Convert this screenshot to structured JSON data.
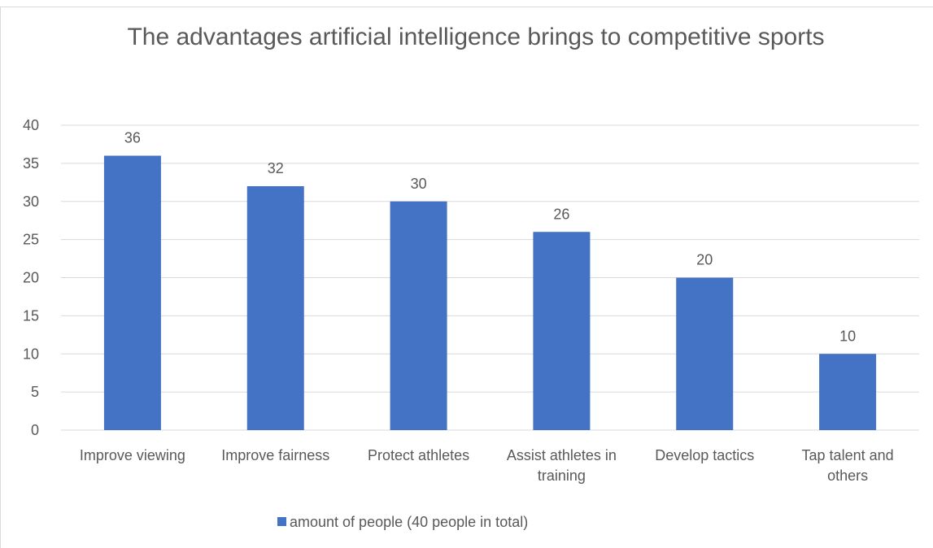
{
  "chart_data": {
    "type": "bar",
    "title": "The advantages artificial intelligence brings to competitive sports",
    "categories": [
      "Improve viewing",
      "Improve fairness",
      "Protect athletes",
      "Assist athletes in training",
      "Develop tactics",
      "Tap talent and others"
    ],
    "series": [
      {
        "name": "amount of people (40 people in total)",
        "color": "#4472c4",
        "values": [
          36,
          32,
          30,
          26,
          20,
          10
        ]
      }
    ],
    "ylim": [
      0,
      40
    ],
    "yticks": [
      0,
      5,
      10,
      15,
      20,
      25,
      30,
      35,
      40
    ],
    "grid": true,
    "legend": "bottom",
    "data_labels": true
  }
}
